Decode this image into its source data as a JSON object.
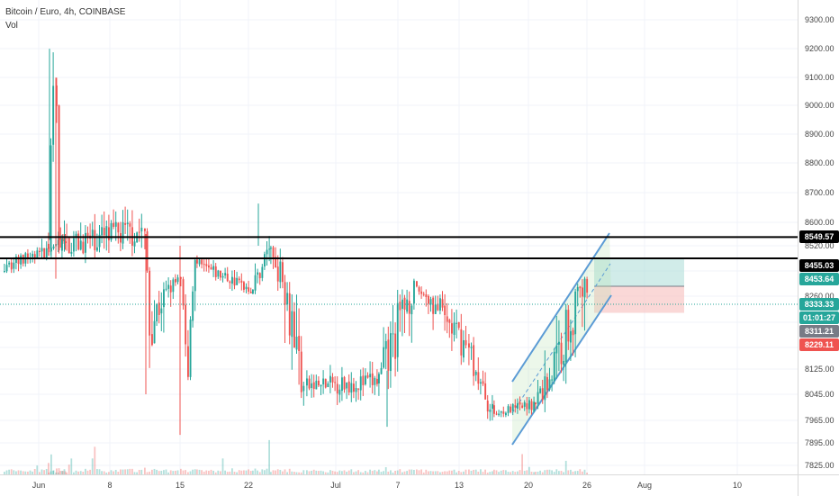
{
  "header": {
    "symbol": "Bitcoin / Euro, 4h, COINBASE",
    "volume_label": "Vol"
  },
  "price_axis": {
    "ticks": [
      "9300.00",
      "9200.00",
      "9100.00",
      "9000.00",
      "8900.00",
      "8800.00",
      "8700.00",
      "8600.00",
      "8520.00",
      "8260.00",
      "8125.00",
      "8045.00",
      "7965.00",
      "7895.00",
      "7825.00"
    ]
  },
  "price_tags": [
    {
      "value": "8549.57",
      "bg": "#000000"
    },
    {
      "value": "8455.03",
      "bg": "#000000"
    },
    {
      "value": "8453.64",
      "bg": "#26a69a"
    },
    {
      "value": "8333.33",
      "bg": "#26a69a"
    },
    {
      "value": "01:01:27",
      "bg": "#26a69a"
    },
    {
      "value": "8311.21",
      "bg": "#787b86"
    },
    {
      "value": "8229.11",
      "bg": "#ef5350"
    }
  ],
  "time_axis": {
    "labels": [
      "Jun",
      "8",
      "15",
      "22",
      "Jul",
      "7",
      "13",
      "20",
      "26",
      "Aug",
      "10"
    ]
  },
  "colors": {
    "up": "#26a69a",
    "down": "#ef5350",
    "channel": "#5b9bd5",
    "level": "#000000",
    "target_zone": "#b2dfdb",
    "stop_zone": "#f8c7c6",
    "current_price": "#26a69a"
  },
  "chart_data": {
    "type": "candlestick",
    "series": [
      {
        "name": "Bitcoin / Euro, 4h, COINBASE"
      }
    ],
    "interval": "4h",
    "price_range": [
      7790,
      9340
    ],
    "horizontal_levels": [
      8549.57,
      8455.03
    ],
    "current_price": 8333.33,
    "position": {
      "target": 8453.64,
      "entry": 8311.21,
      "stop": 8229.11
    },
    "segments": [
      {
        "s": 4,
        "e": 75,
        "start": 8415,
        "end": 8525,
        "lo": 8380,
        "hi": 8620,
        "vol": 0.38
      },
      {
        "s": 53,
        "e": 62,
        "start": 8520,
        "end": 9060,
        "lo": 8470,
        "hi": 9200,
        "vol": 0.9
      },
      {
        "s": 62,
        "e": 68,
        "start": 9060,
        "end": 8520,
        "lo": 8480,
        "hi": 9100,
        "vol": 0.75
      },
      {
        "s": 68,
        "e": 160,
        "start": 8520,
        "end": 8570,
        "lo": 8390,
        "hi": 8760,
        "vol": 0.36
      },
      {
        "s": 160,
        "e": 168,
        "start": 8560,
        "end": 8210,
        "lo": 8020,
        "hi": 8580,
        "vol": 0.7
      },
      {
        "s": 168,
        "e": 200,
        "start": 8210,
        "end": 8340,
        "lo": 8150,
        "hi": 8440,
        "vol": 0.34
      },
      {
        "s": 200,
        "e": 208,
        "start": 8340,
        "end": 8130,
        "lo": 7970,
        "hi": 8360,
        "vol": 0.6
      },
      {
        "s": 208,
        "e": 218,
        "start": 8130,
        "end": 8420,
        "lo": 8090,
        "hi": 8460,
        "vol": 0.45
      },
      {
        "s": 218,
        "e": 280,
        "start": 8420,
        "end": 8300,
        "lo": 8230,
        "hi": 8470,
        "vol": 0.3
      },
      {
        "s": 280,
        "e": 300,
        "start": 8300,
        "end": 8520,
        "lo": 8270,
        "hi": 8665,
        "vol": 0.42
      },
      {
        "s": 300,
        "e": 340,
        "start": 8500,
        "end": 8070,
        "lo": 7995,
        "hi": 8520,
        "vol": 0.36
      },
      {
        "s": 340,
        "e": 420,
        "start": 8070,
        "end": 8085,
        "lo": 7990,
        "hi": 8205,
        "vol": 0.32
      },
      {
        "s": 420,
        "e": 462,
        "start": 8090,
        "end": 8300,
        "lo": 8000,
        "hi": 8350,
        "vol": 0.34
      },
      {
        "s": 462,
        "e": 520,
        "start": 8290,
        "end": 8165,
        "lo": 8125,
        "hi": 8320,
        "vol": 0.3
      },
      {
        "s": 520,
        "e": 548,
        "start": 8165,
        "end": 7985,
        "lo": 7960,
        "hi": 8190,
        "vol": 0.32
      },
      {
        "s": 548,
        "e": 594,
        "start": 7985,
        "end": 8015,
        "lo": 7975,
        "hi": 8095,
        "vol": 0.27
      },
      {
        "s": 594,
        "e": 654,
        "start": 8020,
        "end": 8320,
        "lo": 7990,
        "hi": 8360,
        "vol": 0.32
      }
    ]
  }
}
